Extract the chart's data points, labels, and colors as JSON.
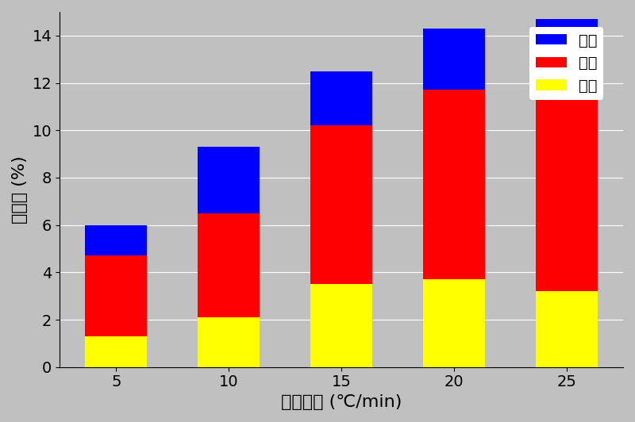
{
  "categories": [
    5,
    10,
    15,
    20,
    25
  ],
  "light_oil": [
    1.3,
    2.1,
    3.5,
    3.7,
    3.2
  ],
  "mid_oil": [
    3.4,
    4.4,
    6.7,
    8.0,
    8.4
  ],
  "heavy_oil": [
    1.3,
    2.8,
    2.3,
    2.6,
    3.1
  ],
  "light_oil_label": "轻油",
  "mid_oil_label": "中油",
  "heavy_oil_label": "重油",
  "light_oil_color": "#FFFF00",
  "mid_oil_color": "#FF0000",
  "heavy_oil_color": "#0000FF",
  "xlabel": "温度梯度 (℃/min)",
  "ylabel": "回收率 (%)",
  "ylim": [
    0,
    15
  ],
  "yticks": [
    0,
    2,
    4,
    6,
    8,
    10,
    12,
    14
  ],
  "background_color": "#C0C0C0",
  "bar_width": 0.55,
  "xlabel_fontsize": 16,
  "ylabel_fontsize": 16,
  "tick_fontsize": 14,
  "legend_fontsize": 14
}
